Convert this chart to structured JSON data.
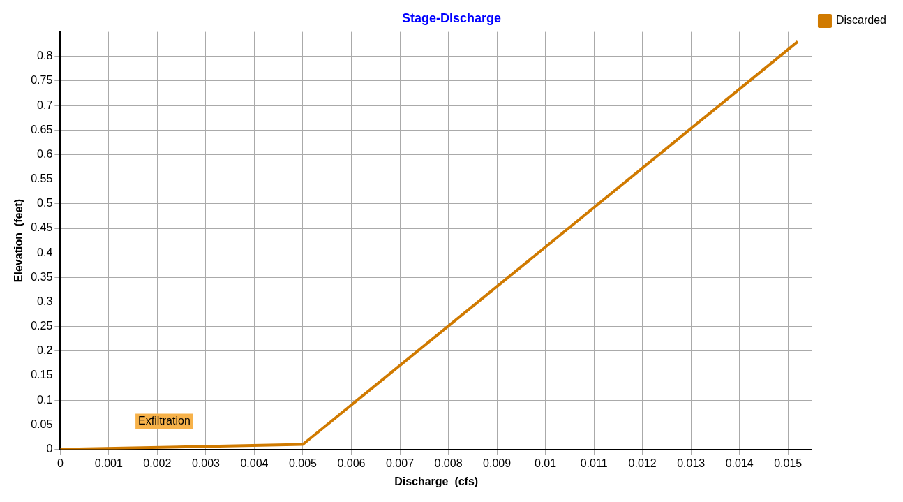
{
  "chart_data": {
    "type": "line",
    "title": "Stage-Discharge",
    "xlabel": "Discharge  (cfs)",
    "ylabel": "Elevation  (feet)",
    "x": [
      0,
      0.005,
      0.0152
    ],
    "series": [
      {
        "name": "Discarded",
        "color": "#d07a00",
        "values": [
          0,
          0.01,
          0.83
        ]
      }
    ],
    "xlim": [
      0,
      0.0155
    ],
    "xticks": [
      0,
      0.001,
      0.002,
      0.003,
      0.004,
      0.005,
      0.006,
      0.007,
      0.008,
      0.009,
      0.01,
      0.011,
      0.012,
      0.013,
      0.014,
      0.015
    ],
    "ylim": [
      0,
      0.85
    ],
    "yticks": [
      0,
      0.05,
      0.1,
      0.15,
      0.2,
      0.25,
      0.3,
      0.35,
      0.4,
      0.45,
      0.5,
      0.55,
      0.6,
      0.65,
      0.7,
      0.75,
      0.8
    ],
    "annotations": [
      "Exfiltration"
    ],
    "grid": true,
    "legend": "top right",
    "marker": "none",
    "line_style": "solid"
  }
}
